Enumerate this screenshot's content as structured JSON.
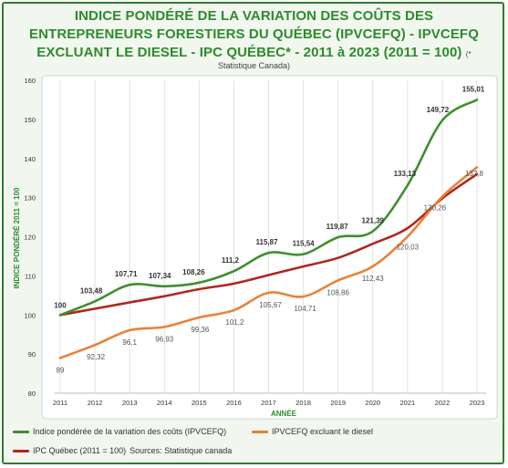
{
  "chart_data": {
    "type": "line",
    "title": "INDICE PONDÉRÉ DE LA VARIATION DES COÛTS DES ENTREPRENEURS FORESTIERS DU QUÉBEC (IPVCEFQ) - IPVCEFQ EXCLUANT LE DIESEL - IPC QUÉBEC* - 2011 à 2023 (2011 = 100)",
    "title_note": "(*",
    "subtitle": "Statistique Canada)",
    "xlabel": "ANNÉE",
    "ylabel": "INDICE PONDÉRÉ 2011 = 100",
    "ylim": [
      80,
      160
    ],
    "yticks": [
      "80",
      "90",
      "100",
      "110",
      "120",
      "130",
      "140",
      "150",
      "160"
    ],
    "x": [
      "2011",
      "2012",
      "2013",
      "2014",
      "2015",
      "2016",
      "2017",
      "2018",
      "2019",
      "2020",
      "2021",
      "2022",
      "2023"
    ],
    "grid": "vertical",
    "legend_position": "bottom",
    "series": [
      {
        "name": "Indice pondérée de la variation des coûts (IPVCEFQ)",
        "color": "#3f8f2f",
        "values": [
          100,
          103.48,
          107.71,
          107.34,
          108.26,
          111.2,
          115.87,
          115.54,
          119.87,
          121.39,
          133.13,
          149.72,
          155.01
        ],
        "labels": [
          "100",
          "103,48",
          "107,71",
          "107,34",
          "108,26",
          "111,2",
          "115,87",
          "115,54",
          "119,87",
          "121,39",
          "133,13",
          "149,72",
          "155,01"
        ]
      },
      {
        "name": "IPVCEFQ excluant le diesel",
        "color": "#e8823a",
        "values": [
          89,
          92.32,
          96.1,
          96.93,
          99.36,
          101.2,
          105.67,
          104.71,
          108.86,
          112.43,
          120.03,
          130.26,
          137.8
        ],
        "labels": [
          "89",
          "92,32",
          "96,1",
          "96,93",
          "99,36",
          "101,2",
          "105,67",
          "104,71",
          "108,86",
          "112,43",
          "120,03",
          "130,26",
          "137,8"
        ]
      },
      {
        "name": "IPC Québec (2011 = 100)",
        "color": "#b0271e",
        "values": [
          100,
          101.6,
          103.2,
          104.8,
          106.6,
          108.0,
          110.2,
          112.4,
          114.6,
          118.2,
          122.2,
          129.8,
          136.0
        ],
        "labels": []
      }
    ],
    "source_note": "Sources: Statistique canada"
  }
}
